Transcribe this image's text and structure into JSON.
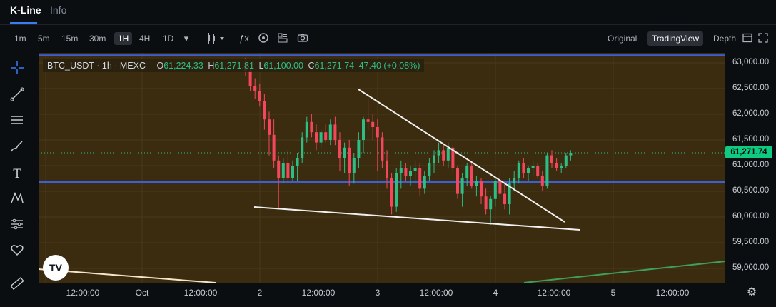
{
  "tabs": [
    {
      "label": "K-Line"
    },
    {
      "label": "Info"
    }
  ],
  "toolbar": {
    "timeframes": [
      "1m",
      "5m",
      "15m",
      "30m",
      "1H",
      "4H",
      "1D"
    ],
    "active_timeframe": "1H",
    "views": [
      "Original",
      "TradingView",
      "Depth"
    ],
    "active_view": "TradingView",
    "icons": [
      "chevron-down-icon",
      "candlestick-type-icon",
      "function-icon",
      "indicator-settings-icon",
      "layout-icon",
      "camera-icon",
      "window-icon",
      "fullscreen-icon"
    ]
  },
  "left_tools": [
    "crosshair-icon",
    "trend-line-icon",
    "horizontal-lines-icon",
    "brush-icon",
    "text-icon",
    "pattern-icon",
    "measure-icon",
    "favorite-heart-icon",
    "ruler-icon"
  ],
  "legend": {
    "symbol": "BTC_USDT · 1h · MEXC",
    "o_label": "O",
    "o_value": "61,224.33",
    "h_label": "H",
    "h_value": "61,271.81",
    "l_label": "L",
    "l_value": "61,100.00",
    "c_label": "C",
    "c_value": "61,271.74",
    "change": "47.40 (+0.08%)"
  },
  "chart_data": {
    "type": "candlestick",
    "y_ticks": [
      "63,000.00",
      "62,500.00",
      "62,000.00",
      "61,500.00",
      "61,000.00",
      "60,500.00",
      "60,000.00",
      "59,500.00",
      "59,000.00"
    ],
    "ylim": [
      58700,
      63200
    ],
    "x_ticks": [
      "12:00:00",
      "Oct",
      "12:00:00",
      "2",
      "12:00:00",
      "3",
      "12:00:00",
      "4",
      "12:00:00",
      "5",
      "12:00:00"
    ],
    "current_price": "61,271.74",
    "horizontal_lines": [
      63150,
      60680
    ],
    "up_color": "#2ebd85",
    "down_color": "#f6465d",
    "candles": [
      [
        63000,
        63100,
        62750,
        62850
      ],
      [
        62850,
        62900,
        62450,
        62550
      ],
      [
        62550,
        62700,
        62300,
        62450
      ],
      [
        62450,
        62600,
        62150,
        62250
      ],
      [
        62250,
        62400,
        61700,
        61900
      ],
      [
        61900,
        62050,
        61200,
        61600
      ],
      [
        61600,
        61900,
        60950,
        61100
      ],
      [
        61100,
        61200,
        60150,
        60750
      ],
      [
        60750,
        61150,
        60650,
        61050
      ],
      [
        61050,
        61300,
        60650,
        60750
      ],
      [
        60750,
        61100,
        60700,
        61000
      ],
      [
        61000,
        61250,
        60700,
        61150
      ],
      [
        61150,
        61650,
        61050,
        61550
      ],
      [
        61550,
        61950,
        61450,
        61850
      ],
      [
        61850,
        62000,
        61550,
        61650
      ],
      [
        61650,
        61800,
        61300,
        61450
      ],
      [
        61450,
        61700,
        61350,
        61650
      ],
      [
        61650,
        61800,
        61450,
        61500
      ],
      [
        61500,
        61900,
        61400,
        61800
      ],
      [
        61800,
        61950,
        61400,
        61500
      ],
      [
        61500,
        61650,
        60900,
        61150
      ],
      [
        61150,
        61450,
        60850,
        61350
      ],
      [
        61350,
        61500,
        60600,
        60850
      ],
      [
        60850,
        61250,
        60650,
        61150
      ],
      [
        61150,
        61650,
        60950,
        61500
      ],
      [
        61500,
        61950,
        61250,
        61900
      ],
      [
        61900,
        62300,
        61700,
        61850
      ],
      [
        61850,
        62000,
        61500,
        61750
      ],
      [
        61750,
        61900,
        60900,
        61550
      ],
      [
        61550,
        61650,
        60950,
        61100
      ],
      [
        61100,
        61300,
        60550,
        60750
      ],
      [
        60750,
        60850,
        60050,
        60200
      ],
      [
        60200,
        60950,
        60100,
        60850
      ],
      [
        60850,
        61100,
        60550,
        60950
      ],
      [
        60950,
        61050,
        60700,
        60800
      ],
      [
        60800,
        61000,
        60600,
        60900
      ],
      [
        60900,
        61100,
        60650,
        60950
      ],
      [
        60950,
        61050,
        60400,
        60550
      ],
      [
        60550,
        60900,
        60450,
        60800
      ],
      [
        60800,
        61150,
        60700,
        61050
      ],
      [
        61050,
        61300,
        60850,
        61200
      ],
      [
        61200,
        61450,
        61050,
        61300
      ],
      [
        61300,
        61400,
        61000,
        61100
      ],
      [
        61100,
        61450,
        60950,
        61350
      ],
      [
        61350,
        61400,
        60850,
        60950
      ],
      [
        60950,
        61000,
        60350,
        60450
      ],
      [
        60450,
        60850,
        60200,
        60750
      ],
      [
        60750,
        61050,
        60600,
        61000
      ],
      [
        61000,
        61050,
        60550,
        60600
      ],
      [
        60600,
        60800,
        60400,
        60700
      ],
      [
        60700,
        60750,
        60250,
        60400
      ],
      [
        60400,
        60550,
        60050,
        60150
      ],
      [
        60150,
        60400,
        59850,
        60350
      ],
      [
        60350,
        60800,
        60200,
        60700
      ],
      [
        60700,
        60850,
        60350,
        60450
      ],
      [
        60450,
        60650,
        60150,
        60250
      ],
      [
        60250,
        60750,
        60050,
        60650
      ],
      [
        60650,
        60900,
        60500,
        60750
      ],
      [
        60750,
        61100,
        60650,
        61050
      ],
      [
        61050,
        61150,
        60750,
        60850
      ],
      [
        60850,
        61000,
        60700,
        60950
      ],
      [
        60950,
        61100,
        60800,
        61000
      ],
      [
        61000,
        61050,
        60750,
        60800
      ],
      [
        60800,
        60900,
        60500,
        60600
      ],
      [
        60600,
        61250,
        60550,
        61200
      ],
      [
        61200,
        61300,
        60950,
        61050
      ],
      [
        61050,
        61150,
        60900,
        60950
      ],
      [
        60950,
        61050,
        60850,
        61000
      ],
      [
        61000,
        61250,
        60950,
        61200
      ],
      [
        61200,
        61300,
        61100,
        61250
      ]
    ]
  }
}
